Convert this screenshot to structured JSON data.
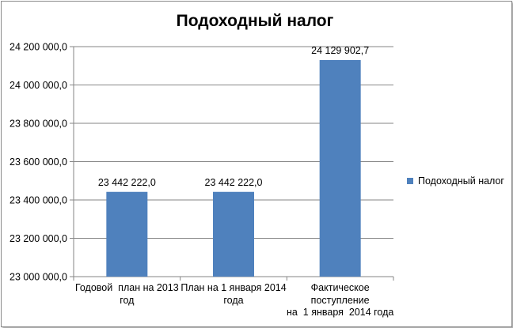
{
  "chart_data": {
    "type": "bar",
    "title": "Подоходный налог",
    "categories": [
      "Годовой  план на 2013\nгод",
      "План на 1 января 2014\nгода",
      "Фактическое\nпоступление\nна  1 января  2014 года"
    ],
    "series": [
      {
        "name": "Подоходный налог",
        "values": [
          23442222.0,
          23442222.0,
          24129902.7
        ],
        "labels": [
          "23 442 222,0",
          "23 442 222,0",
          "24 129 902,7"
        ],
        "color": "#4f81bd"
      }
    ],
    "ylim": [
      23000000,
      24200000
    ],
    "yticks": [
      {
        "value": 23000000,
        "label": "23 000 000,0"
      },
      {
        "value": 23200000,
        "label": "23 200 000,0"
      },
      {
        "value": 23400000,
        "label": "23 400 000,0"
      },
      {
        "value": 23600000,
        "label": "23 600 000,0"
      },
      {
        "value": 23800000,
        "label": "23 800 000,0"
      },
      {
        "value": 24000000,
        "label": "24 000 000,0"
      },
      {
        "value": 24200000,
        "label": "24 200 000,0"
      }
    ],
    "grid": true,
    "legend": "right",
    "xlabel": "",
    "ylabel": ""
  }
}
